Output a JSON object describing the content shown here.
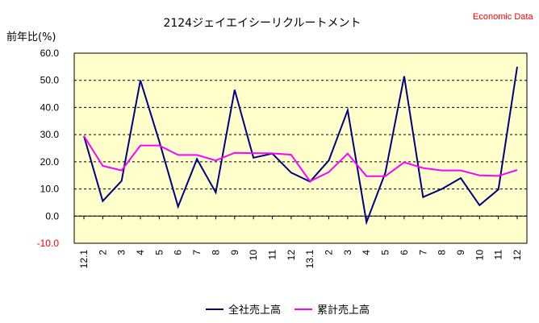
{
  "chart_data": {
    "type": "line",
    "title": "2124ジェイエイシーリクルートメント",
    "credit": "Economic Data",
    "ylabel": "前年比(%)",
    "ylim": [
      -10,
      60
    ],
    "yticks": [
      "60.0",
      "50.0",
      "40.0",
      "30.0",
      "20.0",
      "10.0",
      "0.0",
      "-10.0"
    ],
    "grid": true,
    "legend_position": "bottom",
    "categories": [
      "12.1",
      "2",
      "3",
      "4",
      "5",
      "6",
      "7",
      "8",
      "9",
      "10",
      "11",
      "12",
      "13.1",
      "2",
      "3",
      "4",
      "5",
      "6",
      "7",
      "8",
      "9",
      "10",
      "11",
      "12"
    ],
    "series": [
      {
        "name": "全社売上高",
        "color": "#000080",
        "values": [
          29.5,
          5.5,
          13.0,
          50.0,
          27.5,
          3.5,
          21.0,
          8.7,
          46.5,
          21.5,
          23.0,
          16.0,
          12.7,
          20.5,
          39.0,
          -2.3,
          16.0,
          51.5,
          7.0,
          10.0,
          14.0,
          4.0,
          9.8,
          55.0
        ]
      },
      {
        "name": "累計売上高",
        "color": "#ff00ff",
        "values": [
          29.5,
          18.5,
          16.8,
          26.0,
          26.0,
          22.5,
          22.5,
          20.5,
          23.3,
          23.2,
          23.1,
          22.6,
          12.8,
          16.2,
          23.0,
          14.7,
          14.7,
          19.8,
          17.7,
          16.8,
          16.8,
          15.0,
          14.8,
          17.0
        ]
      }
    ]
  }
}
